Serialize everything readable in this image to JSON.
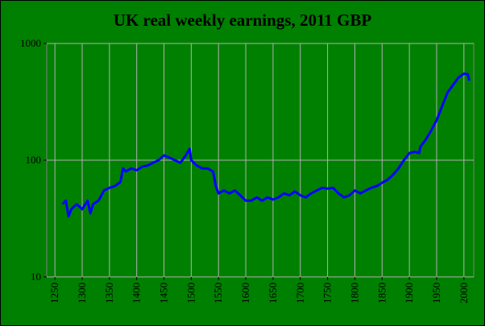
{
  "chart_data": {
    "type": "line",
    "title": "UK real weekly earnings, 2011 GBP",
    "x": [
      1264,
      1270,
      1275,
      1280,
      1290,
      1300,
      1310,
      1315,
      1320,
      1330,
      1340,
      1350,
      1360,
      1370,
      1375,
      1380,
      1390,
      1400,
      1410,
      1420,
      1430,
      1440,
      1450,
      1460,
      1470,
      1480,
      1490,
      1497,
      1500,
      1510,
      1520,
      1530,
      1540,
      1545,
      1550,
      1560,
      1570,
      1580,
      1590,
      1600,
      1610,
      1620,
      1630,
      1640,
      1650,
      1660,
      1670,
      1680,
      1690,
      1700,
      1710,
      1720,
      1730,
      1740,
      1750,
      1760,
      1770,
      1780,
      1790,
      1800,
      1810,
      1820,
      1830,
      1840,
      1850,
      1860,
      1870,
      1880,
      1890,
      1900,
      1910,
      1918,
      1920,
      1930,
      1940,
      1950,
      1960,
      1970,
      1980,
      1990,
      2000,
      2007,
      2010
    ],
    "series": [
      {
        "color": "#0000ff",
        "values": [
          42,
          45,
          33,
          38,
          42,
          38,
          45,
          35,
          42,
          45,
          55,
          58,
          60,
          65,
          85,
          80,
          85,
          82,
          88,
          90,
          95,
          100,
          110,
          105,
          100,
          95,
          110,
          125,
          100,
          90,
          85,
          85,
          80,
          60,
          52,
          55,
          52,
          55,
          50,
          45,
          45,
          48,
          45,
          48,
          46,
          48,
          52,
          50,
          54,
          50,
          48,
          52,
          55,
          58,
          57,
          58,
          52,
          48,
          50,
          55,
          52,
          55,
          58,
          60,
          64,
          68,
          75,
          85,
          100,
          115,
          118,
          115,
          130,
          150,
          180,
          220,
          290,
          380,
          440,
          510,
          550,
          545,
          480
        ]
      }
    ],
    "xlim": [
      1235,
      2018
    ],
    "xticks": [
      1250,
      1300,
      1350,
      1400,
      1450,
      1500,
      1550,
      1600,
      1650,
      1700,
      1750,
      1800,
      1850,
      1900,
      1950,
      2000
    ],
    "ylim": [
      10,
      1000
    ],
    "yticks": [
      10,
      100,
      1000
    ],
    "log_y": true,
    "grid": true,
    "background": "#008000",
    "title_color": "#ffff00"
  }
}
